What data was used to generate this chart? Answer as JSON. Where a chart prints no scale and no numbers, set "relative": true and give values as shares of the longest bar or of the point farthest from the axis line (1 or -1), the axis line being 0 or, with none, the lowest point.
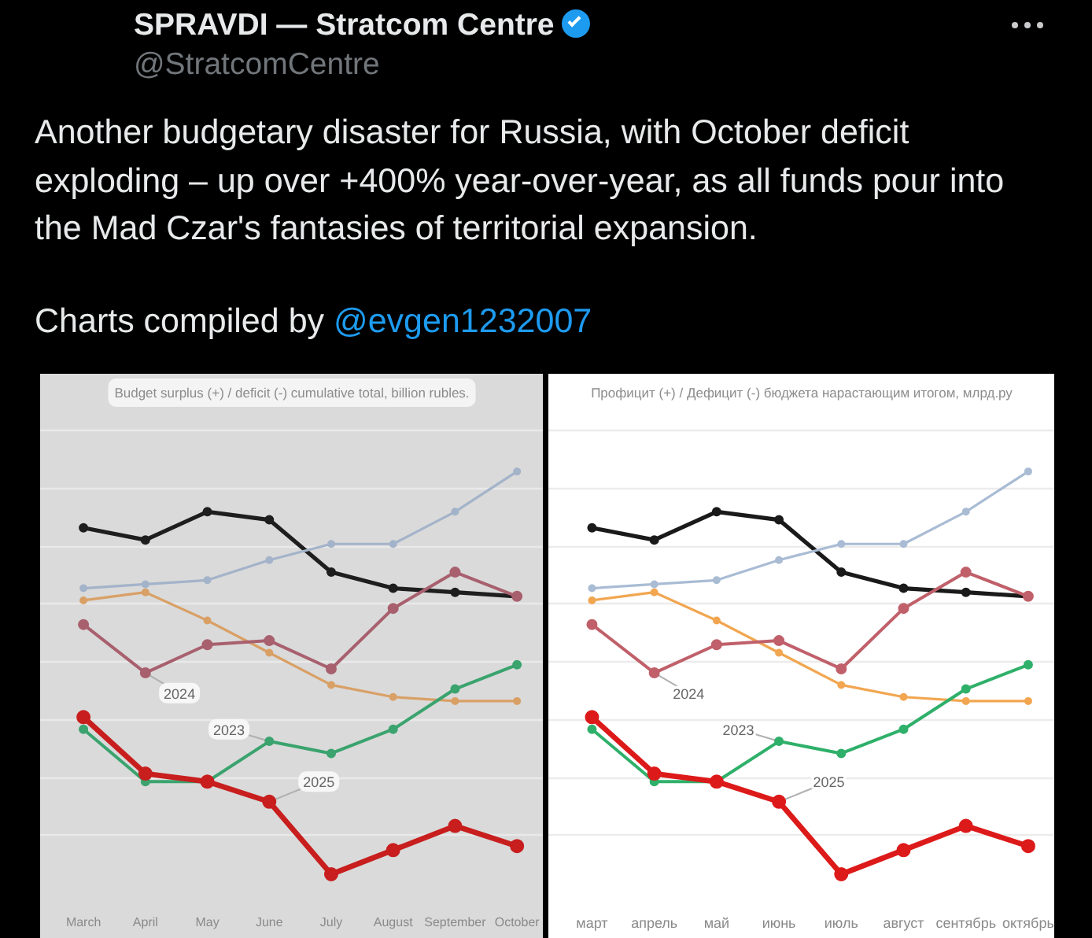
{
  "chart_data": [
    {
      "type": "line",
      "title": "Budget surplus (+) / deficit (-) cumulative total, billion rubles.",
      "annotations": [
        "SPRAVDI — Stratcom Centre",
        "@StratcomCentre",
        "Another budgetary disaster for Russia, with October deficit exploding – up over +400% year-over-year, as all funds pour into the Mad Czar's fantasies of territorial expansion.",
        "Charts compiled by",
        "@evgen1232007"
      ],
      "categories": [
        "March",
        "April",
        "May",
        "June",
        "July",
        "August",
        "September",
        "October"
      ],
      "relative": true,
      "grid": "y",
      "marker": "circle",
      "series": [
        {
          "color": "#1e1e1e",
          "values": [
            0.86,
            0.83,
            0.9,
            0.88,
            0.75,
            0.71,
            0.7,
            0.69
          ]
        },
        {
          "color": "#a3b3c9",
          "values": [
            0.71,
            0.72,
            0.73,
            0.78,
            0.82,
            0.82,
            0.9,
            1.0
          ]
        },
        {
          "color": "#d9a066",
          "values": [
            0.68,
            0.7,
            0.63,
            0.55,
            0.47,
            0.44,
            0.43,
            0.43
          ]
        },
        {
          "name": "2024",
          "color": "#a8606e",
          "values": [
            0.62,
            0.5,
            0.57,
            0.58,
            0.51,
            0.66,
            0.75,
            0.69
          ]
        },
        {
          "name": "2023",
          "color": "#3aa36e",
          "values": [
            0.36,
            0.23,
            0.23,
            0.33,
            0.3,
            0.36,
            0.46,
            0.52
          ]
        },
        {
          "name": "2025",
          "color": "#c81e1e",
          "values": [
            0.39,
            0.25,
            0.23,
            0.18,
            0.0,
            0.06,
            0.12,
            0.07
          ]
        }
      ]
    },
    {
      "type": "line",
      "title": "Профицит (+) / Дефицит (-) бюджета нарастающим итогом, млрд.ру",
      "categories": [
        "март",
        "апрель",
        "май",
        "июнь",
        "июль",
        "август",
        "сентябрь",
        "октябрь"
      ],
      "relative": true,
      "grid": "y",
      "marker": "circle",
      "series": [
        {
          "color": "#1a1a1a",
          "values": [
            0.86,
            0.83,
            0.9,
            0.88,
            0.75,
            0.71,
            0.7,
            0.69
          ]
        },
        {
          "color": "#a9bcd4",
          "values": [
            0.71,
            0.72,
            0.73,
            0.78,
            0.82,
            0.82,
            0.9,
            1.0
          ]
        },
        {
          "color": "#f2a650",
          "values": [
            0.68,
            0.7,
            0.63,
            0.55,
            0.47,
            0.44,
            0.43,
            0.43
          ]
        },
        {
          "name": "2024",
          "color": "#c0606a",
          "values": [
            0.62,
            0.5,
            0.57,
            0.58,
            0.51,
            0.66,
            0.75,
            0.69
          ]
        },
        {
          "name": "2023",
          "color": "#2fb06a",
          "values": [
            0.36,
            0.23,
            0.23,
            0.33,
            0.3,
            0.36,
            0.46,
            0.52
          ]
        },
        {
          "name": "2025",
          "color": "#dd1a1a",
          "values": [
            0.39,
            0.25,
            0.23,
            0.18,
            0.0,
            0.06,
            0.12,
            0.07
          ]
        }
      ]
    }
  ]
}
